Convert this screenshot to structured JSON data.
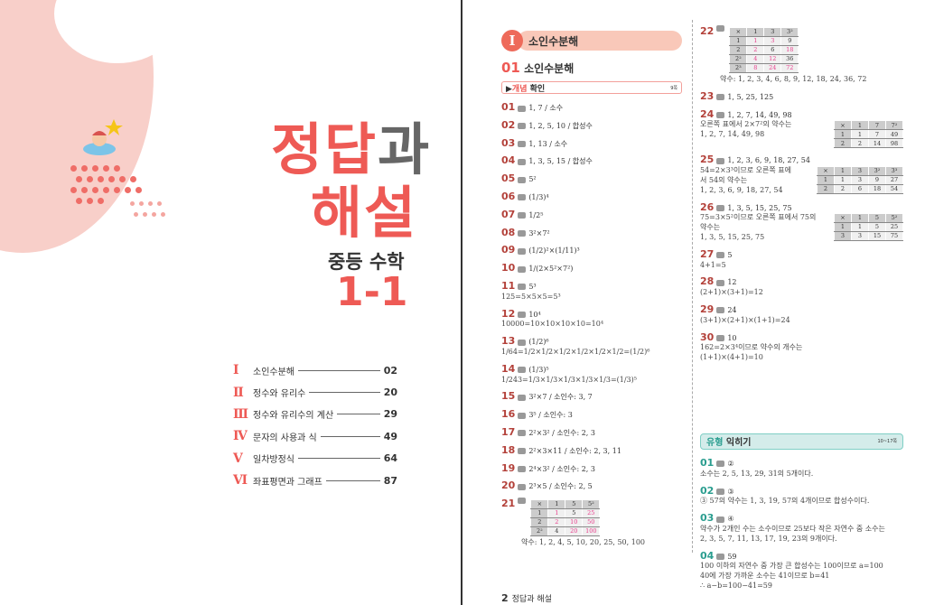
{
  "cover": {
    "title_a": "정답",
    "title_b": "과",
    "title_c": "해설",
    "subject": "중등 수학",
    "grade": "1-1"
  },
  "toc": [
    {
      "num": "Ⅰ",
      "label": "소인수분해",
      "page": "02"
    },
    {
      "num": "Ⅱ",
      "label": "정수와 유리수",
      "page": "20"
    },
    {
      "num": "Ⅲ",
      "label": "정수와 유리수의 계산",
      "page": "29"
    },
    {
      "num": "Ⅳ",
      "label": "문자의 사용과 식",
      "page": "49"
    },
    {
      "num": "Ⅴ",
      "label": "일차방정식",
      "page": "64"
    },
    {
      "num": "Ⅵ",
      "label": "좌표평면과 그래프",
      "page": "87"
    }
  ],
  "chapter": {
    "badge": "Ⅰ",
    "title": "소인수분해"
  },
  "section": {
    "num": "01",
    "title": "소인수분해"
  },
  "concept_box": {
    "a": "개념",
    "b": "확인",
    "page": "9쪽"
  },
  "practice_box": {
    "a": "유형",
    "b": "익히기",
    "page": "10~17쪽"
  },
  "col1": [
    {
      "num": "01",
      "ans": "1, 7 / 소수"
    },
    {
      "num": "02",
      "ans": "1, 2, 5, 10 / 합성수"
    },
    {
      "num": "03",
      "ans": "1, 13 / 소수"
    },
    {
      "num": "04",
      "ans": "1, 3, 5, 15 / 합성수"
    },
    {
      "num": "05",
      "ans": "5²"
    },
    {
      "num": "06",
      "ans": "(1/3)⁴"
    },
    {
      "num": "07",
      "ans": "1/2⁵"
    },
    {
      "num": "08",
      "ans": "3²×7²"
    },
    {
      "num": "09",
      "ans": "(1/2)²×(1/11)³"
    },
    {
      "num": "10",
      "ans": "1/(2×5²×7²)"
    },
    {
      "num": "11",
      "ans": "5³",
      "lines": [
        "125=5×5×5=5³"
      ]
    },
    {
      "num": "12",
      "ans": "10⁴",
      "lines": [
        "10000=10×10×10×10=10⁴"
      ]
    },
    {
      "num": "13",
      "ans": "(1/2)⁶",
      "lines": [
        "1/64=1/2×1/2×1/2×1/2×1/2×1/2=(1/2)⁶"
      ]
    },
    {
      "num": "14",
      "ans": "(1/3)⁵",
      "lines": [
        "1/243=1/3×1/3×1/3×1/3×1/3=(1/3)⁵"
      ]
    },
    {
      "num": "15",
      "ans": "3²×7 / 소인수: 3, 7"
    },
    {
      "num": "16",
      "ans": "3⁵ / 소인수: 3"
    },
    {
      "num": "17",
      "ans": "2²×3² / 소인수: 2, 3"
    },
    {
      "num": "18",
      "ans": "2²×3×11 / 소인수: 2, 3, 11"
    },
    {
      "num": "19",
      "ans": "2⁴×3² / 소인수: 2, 3"
    },
    {
      "num": "20",
      "ans": "2³×5 / 소인수: 2, 5"
    },
    {
      "num": "21",
      "ans": "",
      "table": [
        [
          {
            "v": "×"
          },
          {
            "v": "1"
          },
          {
            "v": "5"
          },
          {
            "v": "5²"
          }
        ],
        [
          {
            "v": "1"
          },
          {
            "v": "1",
            "hl": true
          },
          {
            "v": "5"
          },
          {
            "v": "25",
            "hl": true
          }
        ],
        [
          {
            "v": "2"
          },
          {
            "v": "2",
            "hl": true
          },
          {
            "v": "10",
            "hl": true
          },
          {
            "v": "50",
            "hl": true
          }
        ],
        [
          {
            "v": "2²"
          },
          {
            "v": "4"
          },
          {
            "v": "20",
            "hl": true
          },
          {
            "v": "100",
            "hl": true
          }
        ]
      ],
      "after": [
        "약수: 1, 2, 4, 5, 10, 20, 25, 50, 100"
      ]
    }
  ],
  "col2": [
    {
      "num": "22",
      "ans": "",
      "table": [
        [
          {
            "v": "×"
          },
          {
            "v": "1"
          },
          {
            "v": "3"
          },
          {
            "v": "3²"
          }
        ],
        [
          {
            "v": "1"
          },
          {
            "v": "1",
            "hl": true
          },
          {
            "v": "3",
            "hl": true
          },
          {
            "v": "9"
          }
        ],
        [
          {
            "v": "2"
          },
          {
            "v": "2",
            "hl": true
          },
          {
            "v": "6"
          },
          {
            "v": "18",
            "hl": true
          }
        ],
        [
          {
            "v": "2²"
          },
          {
            "v": "4",
            "hl": true
          },
          {
            "v": "12",
            "hl": true
          },
          {
            "v": "36"
          }
        ],
        [
          {
            "v": "2³"
          },
          {
            "v": "8",
            "hl": true
          },
          {
            "v": "24",
            "hl": true
          },
          {
            "v": "72",
            "hl": true
          }
        ]
      ],
      "after": [
        "약수: 1, 2, 3, 4, 6, 8, 9, 12, 18, 24, 36, 72"
      ]
    },
    {
      "num": "23",
      "ans": "1, 5, 25, 125"
    },
    {
      "num": "24",
      "ans": "1, 2, 7, 14, 49, 98",
      "lines": [
        "오른쪽 표에서 2×7²의 약수는",
        "1, 2, 7, 14, 49, 98"
      ],
      "side": [
        [
          {
            "v": "×"
          },
          {
            "v": "1"
          },
          {
            "v": "7"
          },
          {
            "v": "7²"
          }
        ],
        [
          {
            "v": "1"
          },
          {
            "v": "1"
          },
          {
            "v": "7"
          },
          {
            "v": "49"
          }
        ],
        [
          {
            "v": "2"
          },
          {
            "v": "2"
          },
          {
            "v": "14"
          },
          {
            "v": "98"
          }
        ]
      ]
    },
    {
      "num": "25",
      "ans": "1, 2, 3, 6, 9, 18, 27, 54",
      "lines": [
        "54=2×3³이므로 오른쪽 표에",
        "서 54의 약수는",
        "1, 2, 3, 6, 9, 18, 27, 54"
      ],
      "side": [
        [
          {
            "v": "×"
          },
          {
            "v": "1"
          },
          {
            "v": "3"
          },
          {
            "v": "3²"
          },
          {
            "v": "3³"
          }
        ],
        [
          {
            "v": "1"
          },
          {
            "v": "1"
          },
          {
            "v": "3"
          },
          {
            "v": "9"
          },
          {
            "v": "27"
          }
        ],
        [
          {
            "v": "2"
          },
          {
            "v": "2"
          },
          {
            "v": "6"
          },
          {
            "v": "18"
          },
          {
            "v": "54"
          }
        ]
      ]
    },
    {
      "num": "26",
      "ans": "1, 3, 5, 15, 25, 75",
      "lines": [
        "75=3×5²이므로 오른쪽 표에서 75의",
        "약수는",
        "1, 3, 5, 15, 25, 75"
      ],
      "side": [
        [
          {
            "v": "×"
          },
          {
            "v": "1"
          },
          {
            "v": "5"
          },
          {
            "v": "5²"
          }
        ],
        [
          {
            "v": "1"
          },
          {
            "v": "1"
          },
          {
            "v": "5"
          },
          {
            "v": "25"
          }
        ],
        [
          {
            "v": "3"
          },
          {
            "v": "3"
          },
          {
            "v": "15"
          },
          {
            "v": "75"
          }
        ]
      ]
    },
    {
      "num": "27",
      "ans": "5",
      "lines": [
        "4+1=5"
      ]
    },
    {
      "num": "28",
      "ans": "12",
      "lines": [
        "(2+1)×(3+1)=12"
      ]
    },
    {
      "num": "29",
      "ans": "24",
      "lines": [
        "(3+1)×(2+1)×(1+1)=24"
      ]
    },
    {
      "num": "30",
      "ans": "10",
      "lines": [
        "162=2×3⁴이므로 약수의 개수는",
        "(1+1)×(4+1)=10"
      ]
    }
  ],
  "practice": [
    {
      "num": "01",
      "ans": "②",
      "lines": [
        "소수는 2, 5, 13, 29, 31의 5개이다."
      ]
    },
    {
      "num": "02",
      "ans": "③",
      "lines": [
        "③ 57의 약수는 1, 3, 19, 57의 4개이므로 합성수이다."
      ]
    },
    {
      "num": "03",
      "ans": "④",
      "lines": [
        "약수가 2개인 수는 소수이므로 25보다 작은 자연수 중 소수는",
        "2, 3, 5, 7, 11, 13, 17, 19, 23의 9개이다."
      ]
    },
    {
      "num": "04",
      "ans": "59",
      "lines": [
        "100 이하의 자연수 중 가장 큰 합성수는 100이므로 a=100",
        "40에 가장 가까운 소수는 41이므로 b=41",
        "∴ a−b=100−41=59"
      ]
    }
  ],
  "footer": {
    "page": "2",
    "label": "정답과 해설"
  },
  "colors": {
    "accent": "#ee5a55",
    "teal": "#2a9d8f",
    "highlight": "#e83e8c"
  }
}
